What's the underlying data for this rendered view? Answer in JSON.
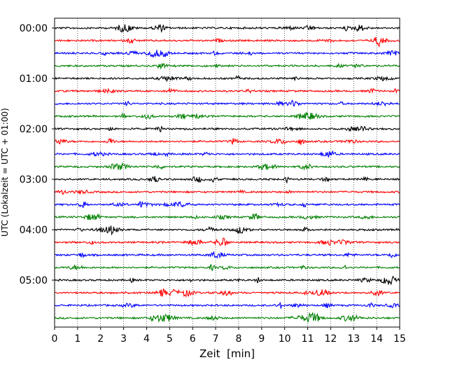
{
  "chart_data": {
    "type": "line",
    "title": "",
    "xlabel": "Zeit  [min]",
    "ylabel": "UTC (Lokalzeit = UTC + 01:00)",
    "xlim": [
      0,
      15
    ],
    "x_ticks": [
      "0",
      "1",
      "2",
      "3",
      "4",
      "5",
      "6",
      "7",
      "8",
      "9",
      "10",
      "11",
      "12",
      "13",
      "14",
      "15"
    ],
    "y_tick_labels": [
      "00:00",
      "01:00",
      "02:00",
      "03:00",
      "04:00",
      "05:00"
    ],
    "rows_per_hour": 4,
    "minutes_per_row": 15,
    "grid": "vertical dotted at each minute",
    "series": [
      {
        "start": "00:00",
        "color": "#000000"
      },
      {
        "start": "00:15",
        "color": "#ff0000"
      },
      {
        "start": "00:30",
        "color": "#0000ff"
      },
      {
        "start": "00:45",
        "color": "#008000"
      },
      {
        "start": "01:00",
        "color": "#000000"
      },
      {
        "start": "01:15",
        "color": "#ff0000"
      },
      {
        "start": "01:30",
        "color": "#0000ff"
      },
      {
        "start": "01:45",
        "color": "#008000"
      },
      {
        "start": "02:00",
        "color": "#000000"
      },
      {
        "start": "02:15",
        "color": "#ff0000"
      },
      {
        "start": "02:30",
        "color": "#0000ff"
      },
      {
        "start": "02:45",
        "color": "#008000"
      },
      {
        "start": "03:00",
        "color": "#000000"
      },
      {
        "start": "03:15",
        "color": "#ff0000"
      },
      {
        "start": "03:30",
        "color": "#0000ff"
      },
      {
        "start": "03:45",
        "color": "#008000"
      },
      {
        "start": "04:00",
        "color": "#000000"
      },
      {
        "start": "04:15",
        "color": "#ff0000"
      },
      {
        "start": "04:30",
        "color": "#0000ff"
      },
      {
        "start": "04:45",
        "color": "#008000"
      },
      {
        "start": "05:00",
        "color": "#000000"
      },
      {
        "start": "05:15",
        "color": "#ff0000"
      },
      {
        "start": "05:30",
        "color": "#0000ff"
      },
      {
        "start": "05:45",
        "color": "#008000"
      }
    ]
  }
}
